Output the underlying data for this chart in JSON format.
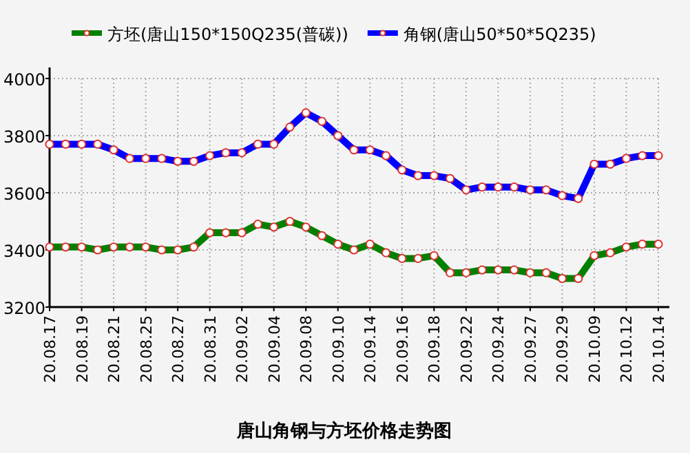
{
  "chart_data": {
    "type": "line",
    "title": "唐山角钢与方坯价格走势图",
    "categories": [
      "20.08.17",
      null,
      "20.08.19",
      null,
      "20.08.21",
      null,
      "20.08.25",
      null,
      "20.08.27",
      null,
      "20.08.31",
      null,
      "20.09.02",
      null,
      "20.09.04",
      null,
      "20.09.08",
      null,
      "20.09.10",
      null,
      "20.09.14",
      null,
      "20.09.16",
      null,
      "20.09.18",
      null,
      "20.09.22",
      null,
      "20.09.24",
      null,
      "20.09.27",
      null,
      "20.09.29",
      null,
      "20.10.09",
      null,
      "20.10.12",
      null,
      "20.10.14"
    ],
    "series": [
      {
        "name": "方坯(唐山150*150Q235(普碳))",
        "color": "#008000",
        "values": [
          3410,
          3410,
          3410,
          3400,
          3410,
          3410,
          3410,
          3400,
          3400,
          3410,
          3460,
          3460,
          3460,
          3490,
          3480,
          3500,
          3480,
          3450,
          3420,
          3400,
          3420,
          3390,
          3370,
          3370,
          3380,
          3320,
          3320,
          3330,
          3330,
          3330,
          3320,
          3320,
          3300,
          3300,
          3380,
          3390,
          3410,
          3420,
          3420
        ]
      },
      {
        "name": "角钢(唐山50*50*5Q235)",
        "color": "#0000ff",
        "values": [
          3770,
          3770,
          3770,
          3770,
          3750,
          3720,
          3720,
          3720,
          3710,
          3710,
          3730,
          3740,
          3740,
          3770,
          3770,
          3830,
          3880,
          3850,
          3800,
          3750,
          3750,
          3730,
          3680,
          3660,
          3660,
          3650,
          3610,
          3620,
          3620,
          3620,
          3610,
          3610,
          3590,
          3580,
          3700,
          3700,
          3720,
          3730,
          3730
        ]
      }
    ],
    "ylim": [
      3200,
      4000
    ],
    "yticks": [
      3200,
      3400,
      3600,
      3800,
      4000
    ],
    "grid": true,
    "legend": "top",
    "marker": "circle",
    "line_style": "solid"
  }
}
